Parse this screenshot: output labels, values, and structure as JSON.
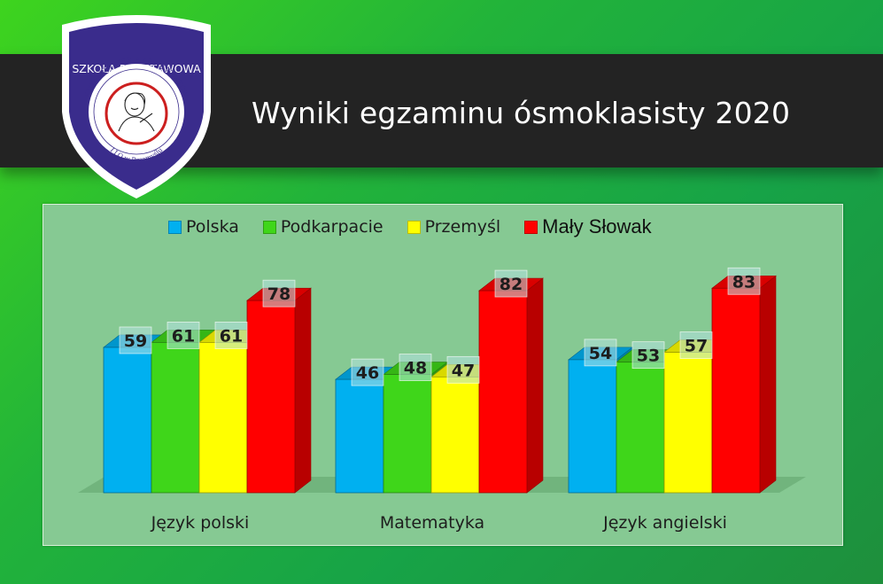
{
  "header": {
    "title": "Wyniki egzaminu ósmoklasisty 2020"
  },
  "logo": {
    "top_text": "SZKOŁA PODSTAWOWA",
    "arc_text": "STOWARZYSZENIA ABSOLWENTÓW",
    "bottom_text": "I LO w Przemyślu",
    "colors": {
      "shield": "#3a2c8c",
      "ring": "#cc1f1f"
    }
  },
  "chart_data": {
    "type": "bar",
    "categories": [
      "Język polski",
      "Matematyka",
      "Język angielski"
    ],
    "series": [
      {
        "name": "Polska",
        "color": "#00b0f0",
        "values": [
          59,
          46,
          54
        ]
      },
      {
        "name": "Podkarpacie",
        "color": "#3fd61a",
        "values": [
          61,
          48,
          53
        ]
      },
      {
        "name": "Przemyśl",
        "color": "#ffff00",
        "values": [
          61,
          47,
          57
        ]
      },
      {
        "name": "Mały Słowak",
        "color": "#ff0000",
        "values": [
          78,
          82,
          83
        ]
      }
    ],
    "ylim": [
      0,
      100
    ],
    "legend": "top",
    "grid": false,
    "data_labels": true,
    "style": "3d"
  }
}
